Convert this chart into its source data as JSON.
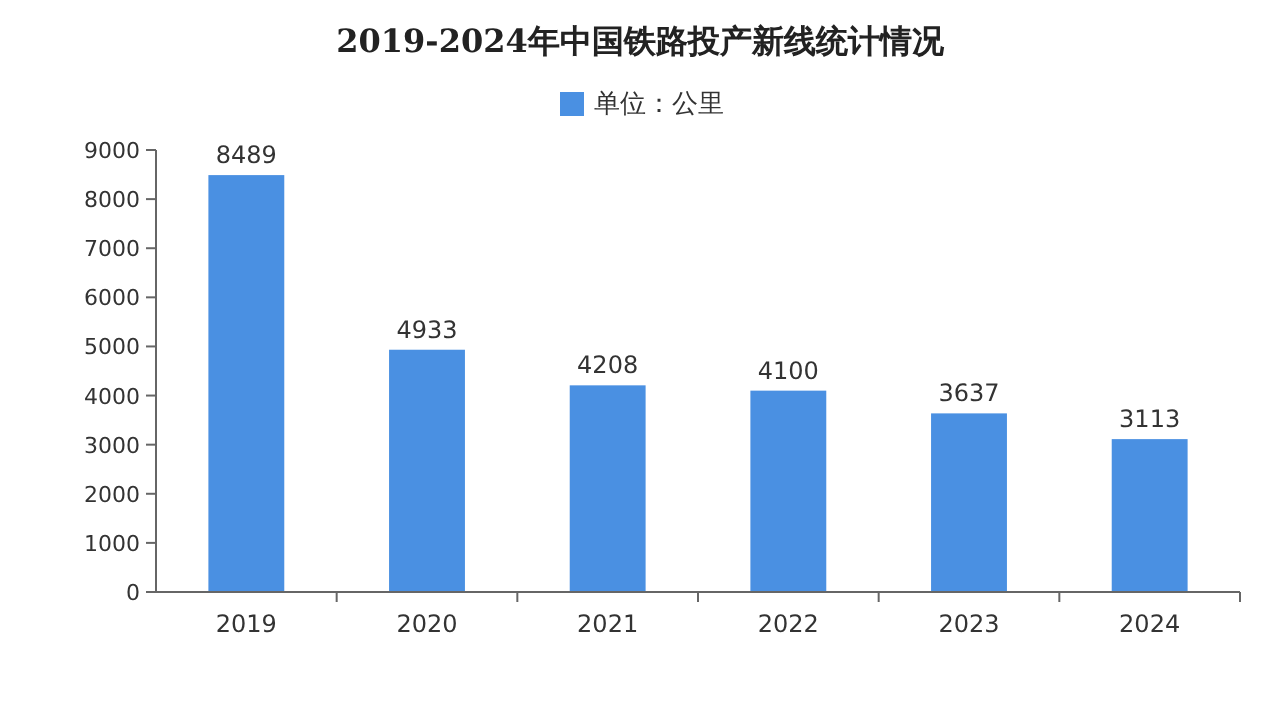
{
  "chart_data": {
    "type": "bar",
    "title": "2019-2024年中国铁路投产新线统计情况",
    "categories": [
      "2019",
      "2020",
      "2021",
      "2022",
      "2023",
      "2024"
    ],
    "series": [
      {
        "name": "单位：公里",
        "color": "#4a90e2",
        "values": [
          8489,
          4933,
          4208,
          4100,
          3637,
          3113
        ]
      }
    ],
    "ylim": [
      0,
      9000
    ],
    "yticks": [
      0,
      1000,
      2000,
      3000,
      4000,
      5000,
      6000,
      7000,
      8000,
      9000
    ],
    "grid": false,
    "legend": "top",
    "data_labels": true
  }
}
